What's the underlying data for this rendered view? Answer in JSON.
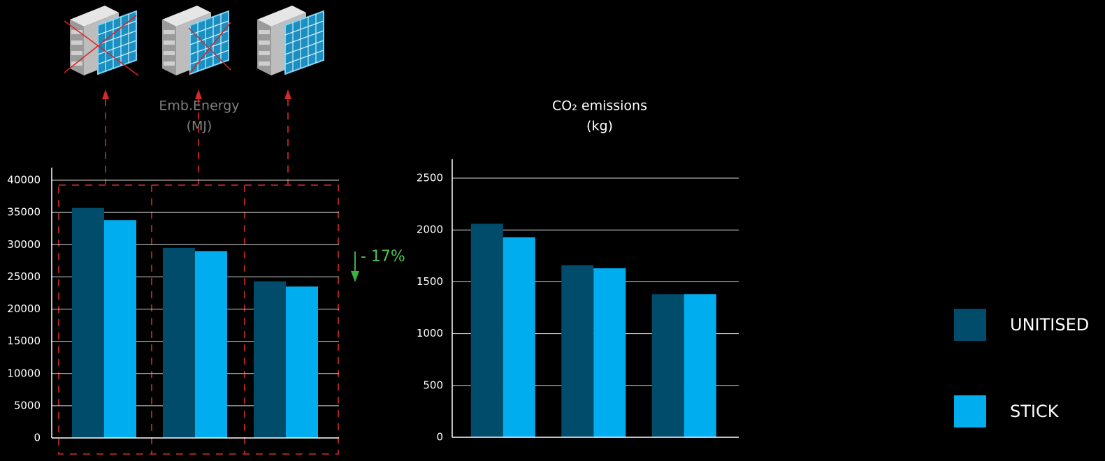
{
  "chart_data": [
    {
      "type": "bar",
      "title": "Emb.Energy",
      "unit": "(MJ)",
      "categories": [
        null,
        null,
        null
      ],
      "series": [
        {
          "name": "UNITISED",
          "color": "#004c6a",
          "values": [
            35700,
            29500,
            24300
          ]
        },
        {
          "name": "STICK",
          "color": "#00adef",
          "values": [
            33800,
            29000,
            23500
          ]
        }
      ],
      "ylim": [
        0,
        40000
      ],
      "yticks": [
        0,
        5000,
        10000,
        15000,
        20000,
        25000,
        30000,
        35000,
        40000
      ],
      "grid": true,
      "annotation": "- 17%",
      "legend": "right"
    },
    {
      "type": "bar",
      "title": "CO₂ emissions",
      "unit": "(kg)",
      "categories": [
        null,
        null,
        null
      ],
      "series": [
        {
          "name": "UNITISED",
          "color": "#004c6a",
          "values": [
            2060,
            1660,
            1380
          ]
        },
        {
          "name": "STICK",
          "color": "#00adef",
          "values": [
            1930,
            1630,
            1380
          ]
        }
      ],
      "ylim": [
        0,
        2500
      ],
      "yticks": [
        0,
        500,
        1000,
        1500,
        2000,
        2500
      ],
      "grid": true
    }
  ]
}
